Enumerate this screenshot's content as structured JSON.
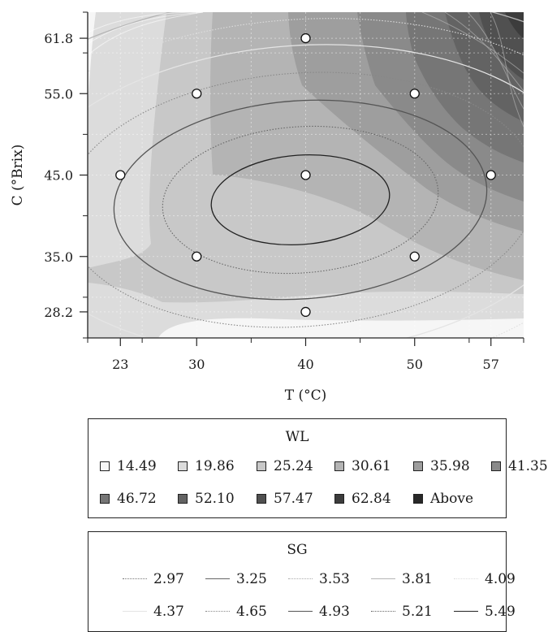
{
  "chart_data": {
    "type": "contour",
    "xlabel": "T (°C)",
    "ylabel": "C (°Brix)",
    "xlim": [
      20,
      60
    ],
    "ylim": [
      25,
      65
    ],
    "x_ticks": [
      23,
      30,
      40,
      50,
      57
    ],
    "y_ticks": [
      28.2,
      35.0,
      45.0,
      55.0,
      61.8
    ],
    "x_tick_labels": [
      "23",
      "30",
      "40",
      "50",
      "57"
    ],
    "y_tick_labels": [
      "28.2",
      "35.0",
      "45.0",
      "55.0",
      "61.8"
    ],
    "grid": true,
    "design_points": [
      {
        "x": 30,
        "y": 55.0
      },
      {
        "x": 50,
        "y": 55.0
      },
      {
        "x": 30,
        "y": 35.0
      },
      {
        "x": 50,
        "y": 35.0
      },
      {
        "x": 23,
        "y": 45.0
      },
      {
        "x": 57,
        "y": 45.0
      },
      {
        "x": 40,
        "y": 28.2
      },
      {
        "x": 40,
        "y": 61.8
      },
      {
        "x": 40,
        "y": 45.0
      }
    ],
    "wl_legend": {
      "title": "WL",
      "levels": [
        {
          "label": "14.49",
          "color": "#f6f6f6"
        },
        {
          "label": "19.86",
          "color": "#dcdcdc"
        },
        {
          "label": "25.24",
          "color": "#c8c8c8"
        },
        {
          "label": "30.61",
          "color": "#b4b4b4"
        },
        {
          "label": "35.98",
          "color": "#9e9e9e"
        },
        {
          "label": "41.35",
          "color": "#8a8a8a"
        },
        {
          "label": "46.72",
          "color": "#767676"
        },
        {
          "label": "52.10",
          "color": "#636363"
        },
        {
          "label": "57.47",
          "color": "#505050"
        },
        {
          "label": "62.84",
          "color": "#3c3c3c"
        },
        {
          "label": "Above",
          "color": "#282828"
        }
      ]
    },
    "sg_legend": {
      "title": "SG",
      "levels": [
        {
          "label": "2.97",
          "style": "dotted",
          "color": "#777777"
        },
        {
          "label": "3.25",
          "style": "solid",
          "color": "#666666"
        },
        {
          "label": "3.53",
          "style": "dotted",
          "color": "#aaaaaa"
        },
        {
          "label": "3.81",
          "style": "solid",
          "color": "#b5b5b5"
        },
        {
          "label": "4.09",
          "style": "dotted",
          "color": "#dddddd"
        },
        {
          "label": "4.37",
          "style": "solid",
          "color": "#e4e4e4"
        },
        {
          "label": "4.65",
          "style": "dotted",
          "color": "#888888"
        },
        {
          "label": "4.93",
          "style": "solid",
          "color": "#555555"
        },
        {
          "label": "5.21",
          "style": "dotted",
          "color": "#666666"
        },
        {
          "label": "5.49",
          "style": "solid",
          "color": "#222222"
        }
      ]
    }
  }
}
